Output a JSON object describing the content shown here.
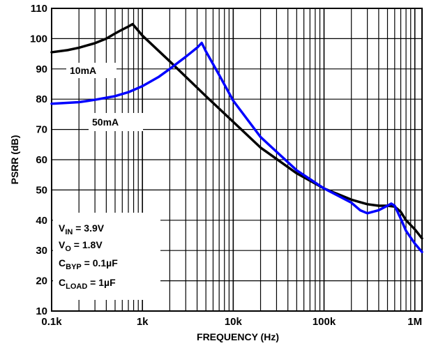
{
  "chart_data": {
    "type": "line",
    "xlabel": "FREQUENCY (Hz)",
    "ylabel": "PSRR (dB)",
    "x_scale": "log",
    "xlim": [
      100,
      1200000
    ],
    "ylim": [
      10,
      110
    ],
    "x_ticks": [
      {
        "value": 100,
        "label": "0.1k"
      },
      {
        "value": 1000,
        "label": "1k"
      },
      {
        "value": 10000,
        "label": "10k"
      },
      {
        "value": 100000,
        "label": "100k"
      },
      {
        "value": 1000000,
        "label": "1M"
      }
    ],
    "y_ticks": [
      110,
      100,
      90,
      80,
      70,
      60,
      50,
      40,
      30,
      20,
      10
    ],
    "grid": true,
    "series": [
      {
        "name": "10mA",
        "color": "#000000",
        "points": [
          [
            100,
            95.5
          ],
          [
            150,
            96.2
          ],
          [
            200,
            97.0
          ],
          [
            300,
            98.5
          ],
          [
            400,
            100.0
          ],
          [
            500,
            101.7
          ],
          [
            600,
            103.0
          ],
          [
            700,
            104.0
          ],
          [
            780,
            104.8
          ],
          [
            1000,
            101.0
          ],
          [
            2000,
            92.5
          ],
          [
            5000,
            81.0
          ],
          [
            10000,
            72.5
          ],
          [
            20000,
            64.0
          ],
          [
            50000,
            55.5
          ],
          [
            100000,
            50.5
          ],
          [
            200000,
            46.8
          ],
          [
            300000,
            45.3
          ],
          [
            400000,
            44.8
          ],
          [
            500000,
            44.8
          ],
          [
            600000,
            44.5
          ],
          [
            700000,
            42.8
          ],
          [
            800000,
            40.0
          ],
          [
            1000000,
            37.0
          ],
          [
            1200000,
            34.0
          ]
        ]
      },
      {
        "name": "50mA",
        "color": "#0000ff",
        "points": [
          [
            100,
            78.5
          ],
          [
            200,
            79.0
          ],
          [
            300,
            79.8
          ],
          [
            500,
            81.0
          ],
          [
            700,
            82.3
          ],
          [
            1000,
            84.3
          ],
          [
            1500,
            87.3
          ],
          [
            2000,
            90.0
          ],
          [
            3000,
            94.0
          ],
          [
            4000,
            97.0
          ],
          [
            4500,
            98.6
          ],
          [
            5000,
            95.8
          ],
          [
            7000,
            88.0
          ],
          [
            10000,
            79.5
          ],
          [
            20000,
            67.5
          ],
          [
            50000,
            56.5
          ],
          [
            100000,
            50.5
          ],
          [
            200000,
            45.8
          ],
          [
            250000,
            43.3
          ],
          [
            300000,
            42.3
          ],
          [
            400000,
            43.3
          ],
          [
            500000,
            44.8
          ],
          [
            550000,
            45.5
          ],
          [
            600000,
            44.8
          ],
          [
            700000,
            40.5
          ],
          [
            800000,
            36.5
          ],
          [
            1000000,
            32.3
          ],
          [
            1200000,
            29.5
          ]
        ]
      }
    ],
    "annotations": {
      "vin": {
        "main": "V",
        "sub": "IN",
        "rest": " = 3.9V"
      },
      "vo": {
        "main": "V",
        "sub": "O",
        "rest": " = 1.8V"
      },
      "cbyp": {
        "main": "C",
        "sub": "BYP",
        "rest": " = 0.1µF"
      },
      "cload": {
        "main": "C",
        "sub": "LOAD",
        "rest": " = 1µF"
      }
    }
  }
}
